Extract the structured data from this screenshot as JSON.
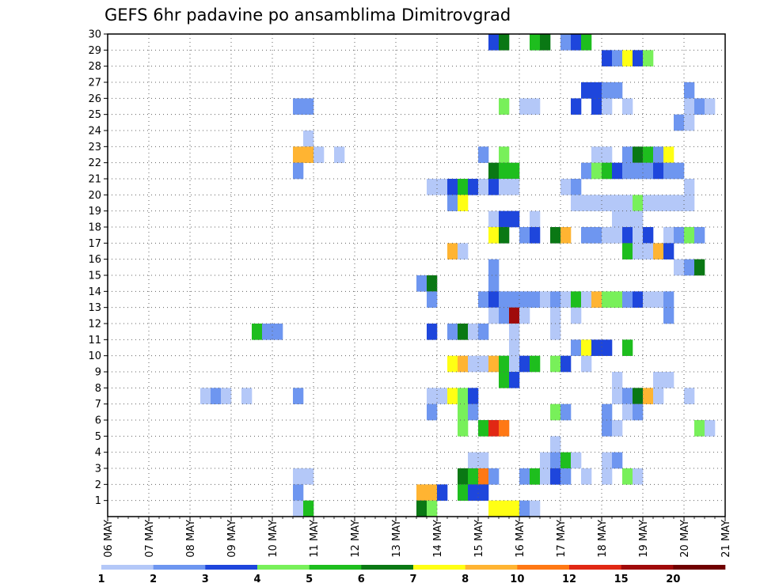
{
  "chart_data": {
    "type": "heatmap",
    "title": "GEFS 6hr padavine po ansamblima Dimitrovgrad",
    "xlabel": "",
    "ylabel": "",
    "x_tick_labels": [
      "06 MAY",
      "07 MAY",
      "08 MAY",
      "09 MAY",
      "10 MAY",
      "11 MAY",
      "12 MAY",
      "13 MAY",
      "14 MAY",
      "15 MAY",
      "16 MAY",
      "17 MAY",
      "18 MAY",
      "19 MAY",
      "20 MAY",
      "21 MAY"
    ],
    "y_tick_labels": [
      "1",
      "2",
      "3",
      "4",
      "5",
      "6",
      "7",
      "8",
      "9",
      "10",
      "11",
      "12",
      "13",
      "14",
      "15",
      "16",
      "17",
      "18",
      "19",
      "20",
      "21",
      "22",
      "23",
      "24",
      "25",
      "26",
      "27",
      "28",
      "29",
      "30"
    ],
    "xlim": [
      0,
      60
    ],
    "ylim": [
      0,
      30
    ],
    "time_step": "6hr",
    "grid": true,
    "legend_position": "bottom",
    "legend": {
      "labels": [
        "1",
        "2",
        "3",
        "4",
        "5",
        "6",
        "7",
        "8",
        "10",
        "12",
        "15",
        "20"
      ],
      "colors": [
        "#b4c8f8",
        "#6e96f0",
        "#1e46dc",
        "#78f05a",
        "#1ebe1e",
        "#0a7814",
        "#ffff14",
        "#ffb432",
        "#ff7814",
        "#e12814",
        "#a00a0a",
        "#700000"
      ]
    },
    "cells": [
      [
        30,
        37,
        2
      ],
      [
        30,
        38,
        5
      ],
      [
        30,
        41,
        4
      ],
      [
        30,
        42,
        5
      ],
      [
        30,
        44,
        1
      ],
      [
        30,
        45,
        2
      ],
      [
        30,
        46,
        4
      ],
      [
        29,
        48,
        2
      ],
      [
        29,
        49,
        1
      ],
      [
        29,
        50,
        6
      ],
      [
        29,
        51,
        2
      ],
      [
        29,
        52,
        3
      ],
      [
        27,
        46,
        2
      ],
      [
        27,
        47,
        2
      ],
      [
        27,
        48,
        1
      ],
      [
        27,
        49,
        1
      ],
      [
        27,
        56,
        1
      ],
      [
        26,
        18,
        1
      ],
      [
        26,
        19,
        1
      ],
      [
        26,
        38,
        3
      ],
      [
        26,
        40,
        0
      ],
      [
        26,
        41,
        0
      ],
      [
        26,
        45,
        2
      ],
      [
        26,
        47,
        2
      ],
      [
        26,
        48,
        0
      ],
      [
        26,
        50,
        0
      ],
      [
        26,
        56,
        0
      ],
      [
        26,
        57,
        1
      ],
      [
        26,
        58,
        0
      ],
      [
        25,
        55,
        1
      ],
      [
        25,
        56,
        0
      ],
      [
        24,
        19,
        0
      ],
      [
        23,
        18,
        7
      ],
      [
        23,
        19,
        7
      ],
      [
        23,
        20,
        0
      ],
      [
        23,
        22,
        0
      ],
      [
        23,
        36,
        1
      ],
      [
        23,
        38,
        3
      ],
      [
        23,
        47,
        0
      ],
      [
        23,
        48,
        0
      ],
      [
        23,
        50,
        1
      ],
      [
        23,
        51,
        5
      ],
      [
        23,
        52,
        4
      ],
      [
        23,
        53,
        1
      ],
      [
        23,
        54,
        6
      ],
      [
        22,
        18,
        1
      ],
      [
        22,
        37,
        5
      ],
      [
        22,
        38,
        4
      ],
      [
        22,
        39,
        4
      ],
      [
        22,
        46,
        1
      ],
      [
        22,
        47,
        3
      ],
      [
        22,
        48,
        4
      ],
      [
        22,
        49,
        2
      ],
      [
        22,
        50,
        1
      ],
      [
        22,
        51,
        1
      ],
      [
        22,
        52,
        1
      ],
      [
        22,
        53,
        2
      ],
      [
        22,
        54,
        1
      ],
      [
        22,
        55,
        1
      ],
      [
        21,
        31,
        0
      ],
      [
        21,
        32,
        0
      ],
      [
        21,
        33,
        2
      ],
      [
        21,
        34,
        4
      ],
      [
        21,
        35,
        2
      ],
      [
        21,
        36,
        0
      ],
      [
        21,
        37,
        2
      ],
      [
        21,
        38,
        0
      ],
      [
        21,
        39,
        0
      ],
      [
        21,
        44,
        0
      ],
      [
        21,
        45,
        1
      ],
      [
        21,
        56,
        0
      ],
      [
        20,
        33,
        1
      ],
      [
        20,
        34,
        6
      ],
      [
        20,
        45,
        0
      ],
      [
        20,
        46,
        0
      ],
      [
        20,
        47,
        0
      ],
      [
        20,
        48,
        0
      ],
      [
        20,
        49,
        0
      ],
      [
        20,
        50,
        0
      ],
      [
        20,
        51,
        3
      ],
      [
        20,
        52,
        0
      ],
      [
        20,
        53,
        0
      ],
      [
        20,
        54,
        0
      ],
      [
        20,
        55,
        0
      ],
      [
        20,
        56,
        0
      ],
      [
        19,
        37,
        0
      ],
      [
        19,
        38,
        2
      ],
      [
        19,
        39,
        2
      ],
      [
        19,
        41,
        0
      ],
      [
        19,
        49,
        0
      ],
      [
        19,
        50,
        0
      ],
      [
        19,
        51,
        0
      ],
      [
        18,
        37,
        6
      ],
      [
        18,
        38,
        5
      ],
      [
        18,
        40,
        1
      ],
      [
        18,
        41,
        2
      ],
      [
        18,
        43,
        5
      ],
      [
        18,
        44,
        7
      ],
      [
        18,
        46,
        1
      ],
      [
        18,
        47,
        1
      ],
      [
        18,
        48,
        0
      ],
      [
        18,
        49,
        0
      ],
      [
        18,
        50,
        2
      ],
      [
        18,
        51,
        0
      ],
      [
        18,
        52,
        2
      ],
      [
        18,
        54,
        0
      ],
      [
        18,
        55,
        1
      ],
      [
        18,
        56,
        3
      ],
      [
        18,
        57,
        1
      ],
      [
        17,
        33,
        7
      ],
      [
        17,
        34,
        0
      ],
      [
        17,
        50,
        4
      ],
      [
        17,
        51,
        0
      ],
      [
        17,
        52,
        0
      ],
      [
        17,
        53,
        7
      ],
      [
        17,
        54,
        2
      ],
      [
        16,
        37,
        1
      ],
      [
        16,
        55,
        0
      ],
      [
        16,
        56,
        1
      ],
      [
        16,
        57,
        5
      ],
      [
        15,
        30,
        1
      ],
      [
        15,
        31,
        5
      ],
      [
        15,
        37,
        1
      ],
      [
        14,
        31,
        1
      ],
      [
        14,
        36,
        1
      ],
      [
        14,
        37,
        2
      ],
      [
        14,
        38,
        1
      ],
      [
        14,
        39,
        1
      ],
      [
        14,
        40,
        1
      ],
      [
        14,
        41,
        1
      ],
      [
        14,
        42,
        0
      ],
      [
        14,
        43,
        1
      ],
      [
        14,
        44,
        0
      ],
      [
        14,
        45,
        4
      ],
      [
        14,
        46,
        0
      ],
      [
        14,
        47,
        7
      ],
      [
        14,
        48,
        3
      ],
      [
        14,
        49,
        3
      ],
      [
        14,
        50,
        1
      ],
      [
        14,
        51,
        2
      ],
      [
        14,
        52,
        0
      ],
      [
        14,
        53,
        0
      ],
      [
        14,
        54,
        1
      ],
      [
        13,
        37,
        0
      ],
      [
        13,
        38,
        1
      ],
      [
        13,
        39,
        10
      ],
      [
        13,
        40,
        0
      ],
      [
        13,
        43,
        0
      ],
      [
        13,
        45,
        0
      ],
      [
        13,
        54,
        1
      ],
      [
        12,
        14,
        4
      ],
      [
        12,
        15,
        1
      ],
      [
        12,
        16,
        1
      ],
      [
        12,
        31,
        2
      ],
      [
        12,
        33,
        1
      ],
      [
        12,
        34,
        5
      ],
      [
        12,
        35,
        0
      ],
      [
        12,
        36,
        1
      ],
      [
        12,
        39,
        0
      ],
      [
        12,
        43,
        0
      ],
      [
        11,
        39,
        0
      ],
      [
        11,
        45,
        1
      ],
      [
        11,
        46,
        6
      ],
      [
        11,
        47,
        2
      ],
      [
        11,
        48,
        2
      ],
      [
        11,
        50,
        4
      ],
      [
        10,
        33,
        6
      ],
      [
        10,
        34,
        7
      ],
      [
        10,
        35,
        0
      ],
      [
        10,
        36,
        0
      ],
      [
        10,
        37,
        7
      ],
      [
        10,
        38,
        4
      ],
      [
        10,
        39,
        0
      ],
      [
        10,
        40,
        2
      ],
      [
        10,
        41,
        4
      ],
      [
        10,
        43,
        3
      ],
      [
        10,
        44,
        2
      ],
      [
        10,
        46,
        0
      ],
      [
        9,
        38,
        4
      ],
      [
        9,
        39,
        2
      ],
      [
        9,
        49,
        0
      ],
      [
        9,
        53,
        0
      ],
      [
        9,
        54,
        0
      ],
      [
        8,
        9,
        0
      ],
      [
        8,
        10,
        1
      ],
      [
        8,
        11,
        0
      ],
      [
        8,
        13,
        0
      ],
      [
        8,
        18,
        1
      ],
      [
        8,
        31,
        0
      ],
      [
        8,
        32,
        0
      ],
      [
        8,
        33,
        6
      ],
      [
        8,
        34,
        3
      ],
      [
        8,
        35,
        2
      ],
      [
        8,
        49,
        0
      ],
      [
        8,
        50,
        1
      ],
      [
        8,
        51,
        5
      ],
      [
        8,
        52,
        7
      ],
      [
        8,
        53,
        0
      ],
      [
        8,
        56,
        0
      ],
      [
        7,
        31,
        1
      ],
      [
        7,
        34,
        3
      ],
      [
        7,
        35,
        1
      ],
      [
        7,
        43,
        3
      ],
      [
        7,
        44,
        1
      ],
      [
        7,
        48,
        1
      ],
      [
        7,
        50,
        0
      ],
      [
        7,
        51,
        1
      ],
      [
        6,
        34,
        3
      ],
      [
        6,
        36,
        4
      ],
      [
        6,
        37,
        9
      ],
      [
        6,
        38,
        8
      ],
      [
        6,
        48,
        1
      ],
      [
        6,
        49,
        0
      ],
      [
        6,
        57,
        3
      ],
      [
        6,
        58,
        0
      ],
      [
        5,
        43,
        0
      ],
      [
        4,
        35,
        0
      ],
      [
        4,
        36,
        0
      ],
      [
        4,
        42,
        0
      ],
      [
        4,
        43,
        1
      ],
      [
        4,
        44,
        4
      ],
      [
        4,
        45,
        0
      ],
      [
        4,
        48,
        0
      ],
      [
        4,
        49,
        1
      ],
      [
        3,
        18,
        0
      ],
      [
        3,
        19,
        0
      ],
      [
        3,
        34,
        5
      ],
      [
        3,
        35,
        4
      ],
      [
        3,
        36,
        8
      ],
      [
        3,
        37,
        1
      ],
      [
        3,
        40,
        1
      ],
      [
        3,
        41,
        4
      ],
      [
        3,
        42,
        0
      ],
      [
        3,
        43,
        2
      ],
      [
        3,
        44,
        1
      ],
      [
        3,
        46,
        0
      ],
      [
        3,
        48,
        0
      ],
      [
        3,
        50,
        3
      ],
      [
        3,
        51,
        0
      ],
      [
        2,
        18,
        1
      ],
      [
        2,
        30,
        7
      ],
      [
        2,
        31,
        7
      ],
      [
        2,
        32,
        2
      ],
      [
        2,
        34,
        4
      ],
      [
        2,
        35,
        2
      ],
      [
        2,
        36,
        2
      ],
      [
        1,
        18,
        0
      ],
      [
        1,
        19,
        4
      ],
      [
        1,
        30,
        5
      ],
      [
        1,
        31,
        3
      ],
      [
        1,
        37,
        6
      ],
      [
        1,
        38,
        6
      ],
      [
        1,
        39,
        6
      ],
      [
        1,
        40,
        1
      ],
      [
        1,
        41,
        0
      ]
    ]
  }
}
